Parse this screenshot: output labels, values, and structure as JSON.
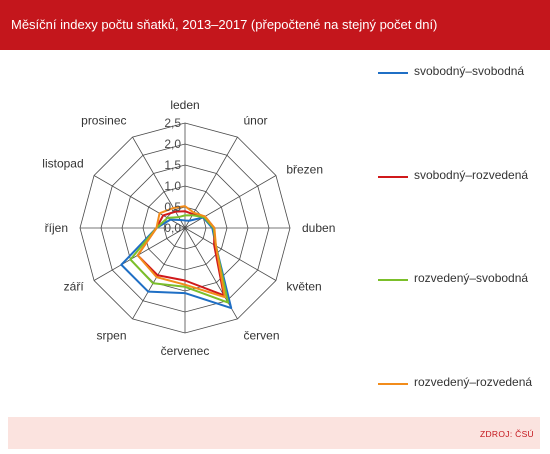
{
  "header": {
    "title": "Měsíční indexy počtu sňatků, 2013–2017 (přepočtené na stejný počet dní)"
  },
  "footer": {
    "source": "ZDROJ: ČSÚ"
  },
  "chart_data": {
    "type": "radar",
    "categories": [
      "leden",
      "únor",
      "březen",
      "duben",
      "květen",
      "červen",
      "červenec",
      "srpen",
      "září",
      "říjen",
      "listopad",
      "prosinec"
    ],
    "radial_ticks": [
      "0,0",
      "0,5",
      "1,0",
      "1,5",
      "2,0",
      "2,5"
    ],
    "radial_values": [
      0,
      0.5,
      1,
      1.5,
      2,
      2.5
    ],
    "rmax": 2.5,
    "legend_position": "right",
    "series": [
      {
        "name": "svobodný–svobodná",
        "color": "#1f6fc5",
        "values": [
          0.18,
          0.2,
          0.5,
          0.65,
          0.85,
          2.2,
          1.55,
          1.75,
          1.75,
          0.68,
          0.4,
          0.22
        ]
      },
      {
        "name": "svobodný–rozvedená",
        "color": "#d0191b",
        "values": [
          0.4,
          0.38,
          0.55,
          0.7,
          0.8,
          1.85,
          1.25,
          1.3,
          1.3,
          0.68,
          0.6,
          0.45
        ]
      },
      {
        "name": "rozvedený–svobodná",
        "color": "#7bbf2a",
        "values": [
          0.3,
          0.35,
          0.52,
          0.68,
          0.85,
          2.05,
          1.4,
          1.52,
          1.5,
          0.68,
          0.48,
          0.3
        ]
      },
      {
        "name": "rozvedený–rozvedená",
        "color": "#f28c1b",
        "values": [
          0.52,
          0.42,
          0.55,
          0.7,
          0.85,
          1.9,
          1.35,
          1.35,
          1.3,
          0.68,
          0.7,
          0.55
        ]
      }
    ]
  }
}
